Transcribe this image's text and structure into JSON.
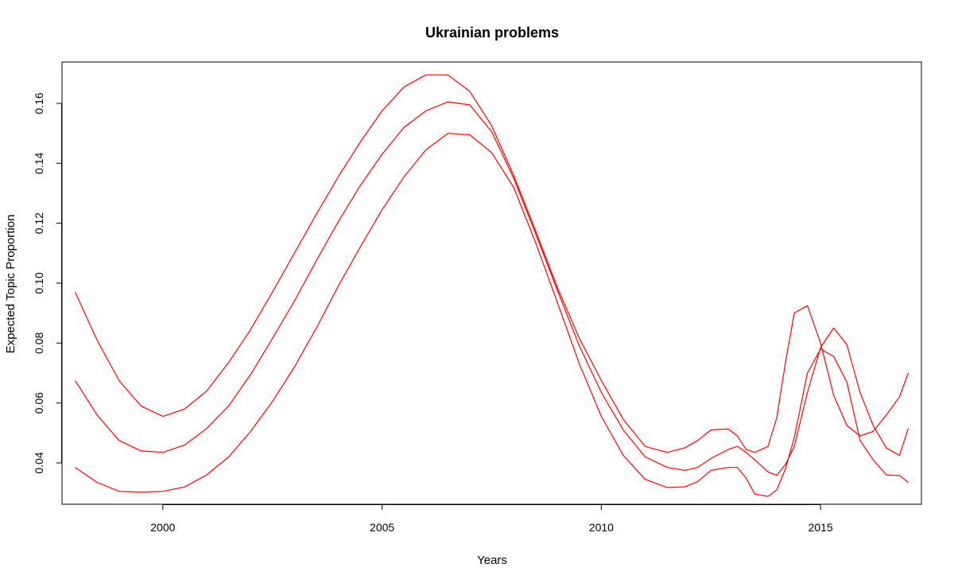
{
  "chart_data": {
    "type": "line",
    "title": "Ukrainian problems",
    "xlabel": "Years",
    "ylabel": "Expected Topic Proportion",
    "xlim": [
      1997.7,
      2017.3
    ],
    "ylim": [
      0.0262,
      0.1738
    ],
    "x_ticks": [
      {
        "value": 2000,
        "label": "2000"
      },
      {
        "value": 2005,
        "label": "2005"
      },
      {
        "value": 2010,
        "label": "2010"
      },
      {
        "value": 2015,
        "label": "2015"
      }
    ],
    "y_ticks": [
      {
        "value": 0.04,
        "label": "0.04"
      },
      {
        "value": 0.06,
        "label": "0.06"
      },
      {
        "value": 0.08,
        "label": "0.08"
      },
      {
        "value": 0.1,
        "label": "0.10"
      },
      {
        "value": 0.12,
        "label": "0.12"
      },
      {
        "value": 0.14,
        "label": "0.14"
      },
      {
        "value": 0.16,
        "label": "0.16"
      }
    ],
    "grid": false,
    "line_color": "#ff0000",
    "x": [
      1998.0,
      1998.5,
      1999.0,
      1999.5,
      2000.0,
      2000.5,
      2001.0,
      2001.5,
      2002.0,
      2002.5,
      2003.0,
      2003.5,
      2004.0,
      2004.5,
      2005.0,
      2005.5,
      2006.0,
      2006.5,
      2007.0,
      2007.5,
      2008.0,
      2008.5,
      2009.0,
      2009.5,
      2010.0,
      2010.5,
      2011.0,
      2011.5,
      2011.9,
      2012.2,
      2012.5,
      2012.9,
      2013.1,
      2013.3,
      2013.5,
      2013.8,
      2014.0,
      2014.2,
      2014.4,
      2014.7,
      2015.0,
      2015.3,
      2015.6,
      2015.9,
      2016.2,
      2016.5,
      2016.8,
      2017.0
    ],
    "series": [
      {
        "values": [
          0.097,
          0.081,
          0.0675,
          0.059,
          0.0555,
          0.058,
          0.064,
          0.0735,
          0.0845,
          0.097,
          0.11,
          0.123,
          0.1355,
          0.147,
          0.1575,
          0.1655,
          0.1695,
          0.1695,
          0.164,
          0.1525,
          0.136,
          0.1175,
          0.0985,
          0.0815,
          0.0675,
          0.0545,
          0.0455,
          0.0435,
          0.045,
          0.0475,
          0.051,
          0.0513,
          0.049,
          0.0445,
          0.0435,
          0.0455,
          0.055,
          0.0735,
          0.09,
          0.0925,
          0.08,
          0.0625,
          0.0525,
          0.049,
          0.0505,
          0.056,
          0.062,
          0.07
        ]
      },
      {
        "values": [
          0.0675,
          0.056,
          0.0475,
          0.044,
          0.0435,
          0.046,
          0.0515,
          0.059,
          0.0695,
          0.0815,
          0.094,
          0.1075,
          0.1205,
          0.1325,
          0.143,
          0.152,
          0.1575,
          0.1605,
          0.1595,
          0.1505,
          0.135,
          0.1165,
          0.0975,
          0.079,
          0.0635,
          0.051,
          0.042,
          0.0385,
          0.0375,
          0.0385,
          0.0415,
          0.0445,
          0.0455,
          0.0435,
          0.041,
          0.037,
          0.0358,
          0.0395,
          0.0455,
          0.0635,
          0.0785,
          0.085,
          0.0795,
          0.0635,
          0.0525,
          0.045,
          0.0425,
          0.0515
        ]
      },
      {
        "values": [
          0.0385,
          0.0335,
          0.0305,
          0.0302,
          0.0305,
          0.032,
          0.036,
          0.042,
          0.0505,
          0.0605,
          0.072,
          0.085,
          0.099,
          0.112,
          0.1245,
          0.1355,
          0.1445,
          0.15,
          0.1495,
          0.1435,
          0.132,
          0.1135,
          0.0935,
          0.073,
          0.0555,
          0.0425,
          0.0345,
          0.0318,
          0.032,
          0.0338,
          0.0375,
          0.0385,
          0.0385,
          0.035,
          0.0296,
          0.0288,
          0.031,
          0.038,
          0.0485,
          0.07,
          0.078,
          0.0755,
          0.067,
          0.0475,
          0.041,
          0.036,
          0.0358,
          0.0335
        ]
      }
    ]
  }
}
